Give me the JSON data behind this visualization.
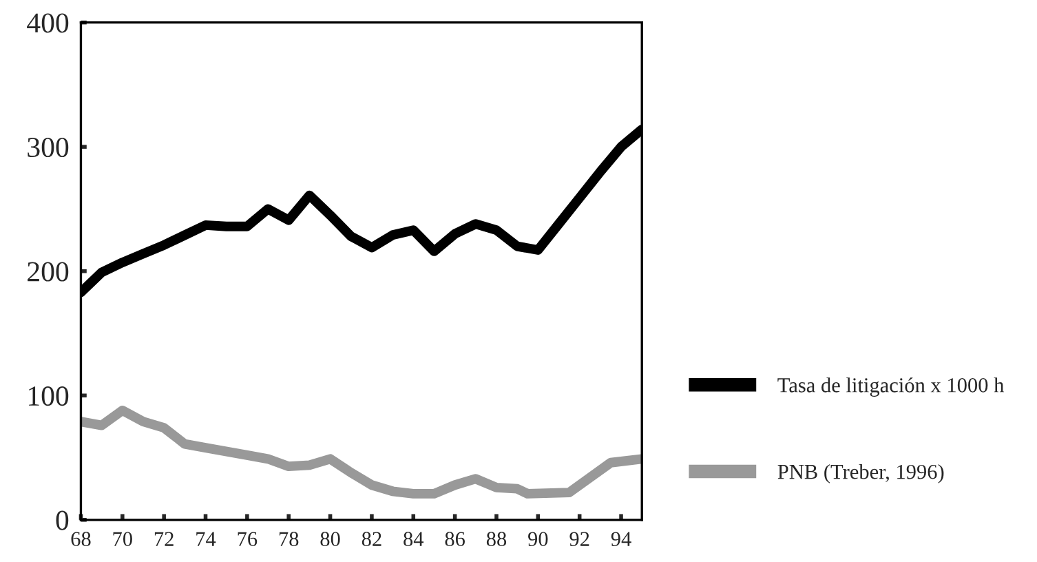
{
  "chart_data": {
    "type": "line",
    "xlim": [
      68,
      95
    ],
    "xticks": [
      68,
      70,
      72,
      74,
      76,
      78,
      80,
      82,
      84,
      86,
      88,
      90,
      92,
      94
    ],
    "ylim": [
      0,
      400
    ],
    "yticks": [
      0,
      100,
      200,
      300,
      400
    ],
    "grid": false,
    "legend": "right",
    "line_style": "solid",
    "marker": "none",
    "series": [
      {
        "name": "Tasa de litigación x 1000 h",
        "color": "#000000",
        "x": [
          68,
          69,
          70,
          71,
          72,
          73,
          74,
          75,
          76,
          77,
          78,
          79,
          80,
          81,
          82,
          83,
          84,
          85,
          86,
          87,
          88,
          89,
          90,
          91,
          92,
          93,
          94,
          95
        ],
        "values": [
          183,
          199,
          207,
          214,
          221,
          229,
          237,
          236,
          236,
          250,
          241,
          261,
          245,
          228,
          219,
          229,
          233,
          216,
          230,
          238,
          233,
          220,
          217,
          238,
          259,
          280,
          300,
          314
        ]
      },
      {
        "name": "PNB (Treber, 1996)",
        "color": "#999999",
        "x": [
          68,
          69,
          70,
          71,
          72,
          73,
          74,
          76,
          77,
          78,
          79,
          80,
          81,
          82,
          83,
          84,
          85,
          86,
          87,
          88,
          89,
          89.5,
          91.5,
          93.5,
          95
        ],
        "values": [
          79,
          76,
          88,
          79,
          74,
          61,
          58,
          52,
          49,
          43,
          44,
          49,
          38,
          28,
          23,
          21,
          21,
          28,
          33,
          26,
          25,
          21,
          22,
          46,
          49
        ]
      }
    ]
  }
}
